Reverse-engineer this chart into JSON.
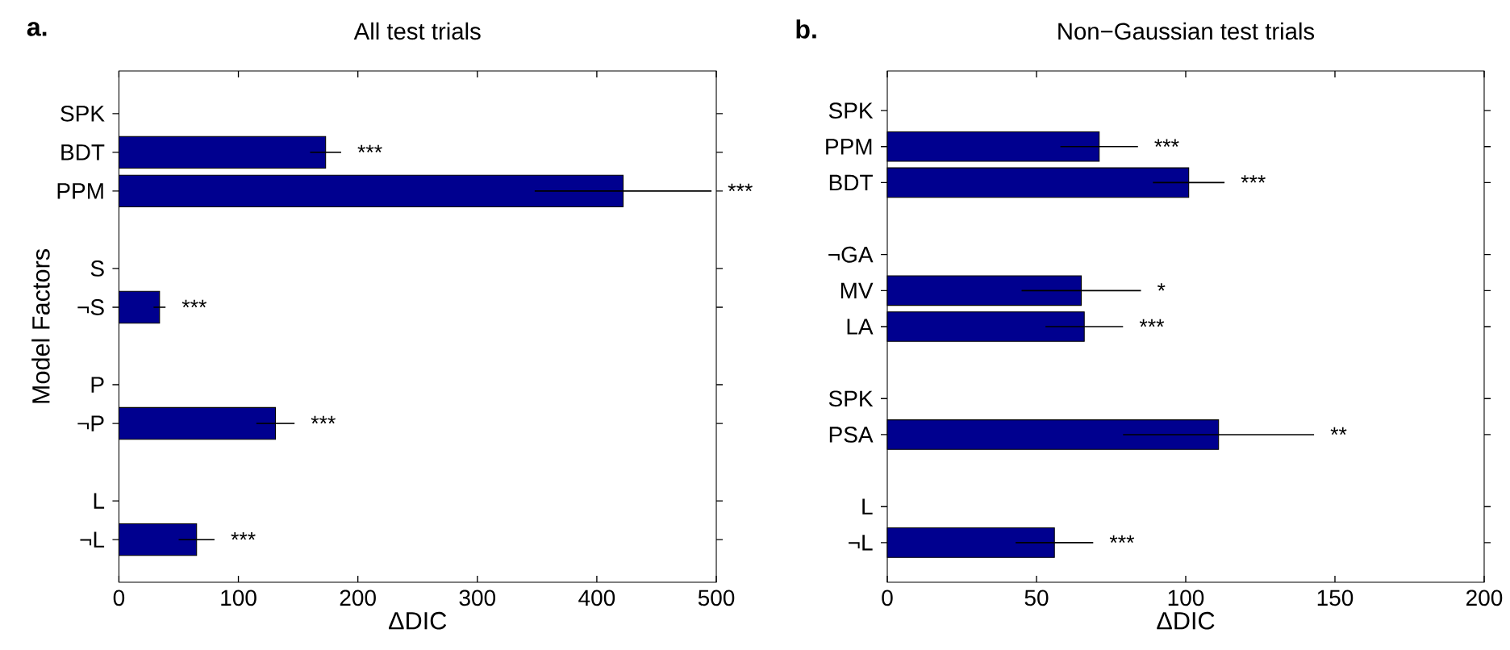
{
  "chart_data": [
    {
      "type": "bar",
      "orientation": "horizontal",
      "title": "All test trials",
      "xlabel": "ΔDIC",
      "ylabel": "Model Factors",
      "color": "#00008f",
      "xlim": [
        0,
        500
      ],
      "xticks": [
        0,
        100,
        200,
        300,
        400,
        500
      ],
      "categories": [
        "SPK",
        "BDT",
        "PPM",
        null,
        "S",
        "¬S",
        null,
        "P",
        "¬P",
        null,
        "L",
        "¬L"
      ],
      "values": [
        null,
        173,
        422,
        null,
        null,
        34,
        null,
        null,
        131,
        null,
        null,
        65
      ],
      "errors": [
        null,
        13,
        74,
        null,
        null,
        5,
        null,
        null,
        16,
        null,
        null,
        15
      ],
      "annotations": [
        "a.",
        "***",
        "***",
        "***",
        "***",
        "***"
      ]
    },
    {
      "type": "bar",
      "orientation": "horizontal",
      "title": "Non−Gaussian test trials",
      "xlabel": "ΔDIC",
      "color": "#00008f",
      "xlim": [
        0,
        200
      ],
      "xticks": [
        0,
        50,
        100,
        150,
        200
      ],
      "categories": [
        "SPK",
        "PPM",
        "BDT",
        null,
        "¬GA",
        "MV",
        "LA",
        null,
        "SPK",
        "PSA",
        null,
        "L",
        "¬L"
      ],
      "values": [
        null,
        71,
        101,
        null,
        null,
        65,
        66,
        null,
        null,
        111,
        null,
        null,
        56
      ],
      "errors": [
        null,
        13,
        12,
        null,
        null,
        20,
        13,
        null,
        null,
        32,
        null,
        null,
        13
      ],
      "annotations": [
        "b.",
        "***",
        "***",
        "*",
        "***",
        "**",
        "***"
      ]
    }
  ]
}
